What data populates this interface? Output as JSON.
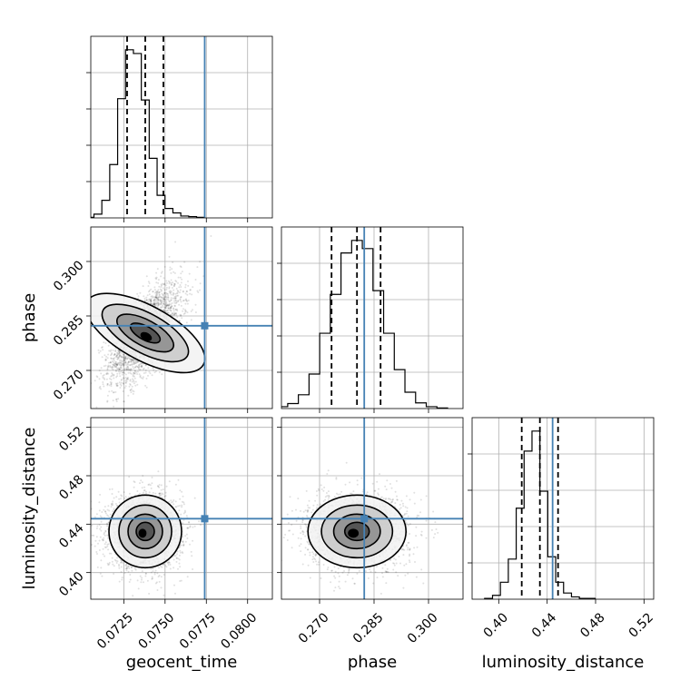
{
  "chart_data": {
    "type": "corner",
    "parameters": [
      {
        "name": "geocent_time",
        "label": "geocent_time",
        "range": [
          0.0705,
          0.0815
        ],
        "ticks": [
          0.0725,
          0.075,
          0.0775,
          0.08
        ],
        "tick_labels": [
          "0.0725",
          "0.0750",
          "0.0775",
          "0.0800"
        ],
        "truth": 0.0774,
        "median": 0.0738,
        "quantiles": [
          0.0727,
          0.0738,
          0.0749
        ],
        "hist_counts": [
          1,
          6,
          28,
          85,
          190,
          268,
          262,
          188,
          95,
          36,
          15,
          8,
          3,
          2,
          1
        ]
      },
      {
        "name": "phase",
        "label": "phase",
        "range": [
          0.2595,
          0.3095
        ],
        "ticks": [
          0.27,
          0.285,
          0.3
        ],
        "tick_labels": [
          "0.270",
          "0.285",
          "0.300"
        ],
        "truth": 0.2823,
        "median": 0.2803,
        "quantiles": [
          0.2733,
          0.2803,
          0.2868
        ],
        "hist_counts": [
          1,
          3,
          8,
          22,
          55,
          120,
          182,
          248,
          268,
          255,
          188,
          120,
          62,
          26,
          9,
          3,
          1
        ]
      },
      {
        "name": "luminosity_distance",
        "label": "luminosity_distance",
        "range": [
          0.378,
          0.528
        ],
        "ticks": [
          0.4,
          0.44,
          0.48,
          0.52
        ],
        "tick_labels": [
          "0.40",
          "0.44",
          "0.48",
          "0.52"
        ],
        "truth": 0.4445,
        "median": 0.434,
        "quantiles": [
          0.419,
          0.434,
          0.449
        ],
        "hist_counts": [
          1,
          5,
          22,
          52,
          118,
          192,
          218,
          140,
          55,
          22,
          8,
          3,
          1,
          1
        ]
      }
    ],
    "truth_color": "#4682b4",
    "line_color": "#000000",
    "grid": true,
    "contour_levels": 4
  }
}
